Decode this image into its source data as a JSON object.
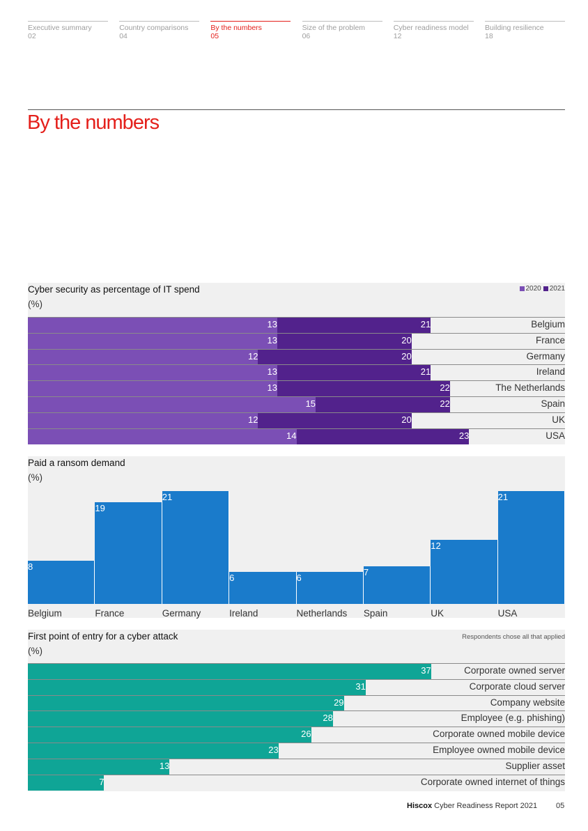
{
  "nav": [
    {
      "label": "Executive summary",
      "page": "02",
      "active": false
    },
    {
      "label": "Country comparisons",
      "page": "04",
      "active": false
    },
    {
      "label": "By the numbers",
      "page": "05",
      "active": true
    },
    {
      "label": "Size of the problem",
      "page": "06",
      "active": false
    },
    {
      "label": "Cyber readiness model",
      "page": "12",
      "active": false
    },
    {
      "label": "Building resilience",
      "page": "18",
      "active": false
    }
  ],
  "page_title": "By the numbers",
  "footer": {
    "brand": "Hiscox",
    "text": " Cyber Readiness Report 2021",
    "page": "05"
  },
  "colors": {
    "accent": "#e4201b",
    "c2020": "#7b4fb5",
    "c2021": "#52228c",
    "ransom": "#1a7bcb",
    "entry": "#0fa596",
    "panel": "#f0f0f0"
  },
  "chart_data": [
    {
      "type": "bar",
      "orientation": "horizontal",
      "title": "Cyber security as percentage of IT spend",
      "unit": "(%)",
      "legend": [
        "2020",
        "2021"
      ],
      "categories": [
        "Belgium",
        "France",
        "Germany",
        "Ireland",
        "The Netherlands",
        "Spain",
        "UK",
        "USA"
      ],
      "series": [
        {
          "name": "2020",
          "values": [
            13,
            13,
            12,
            13,
            13,
            15,
            12,
            14
          ]
        },
        {
          "name": "2021",
          "values": [
            21,
            20,
            20,
            21,
            22,
            22,
            20,
            23
          ]
        }
      ]
    },
    {
      "type": "bar",
      "orientation": "vertical",
      "title": "Paid a ransom demand",
      "unit": "(%)",
      "categories": [
        "Belgium",
        "France",
        "Germany",
        "Ireland",
        "Netherlands",
        "Spain",
        "UK",
        "USA"
      ],
      "values": [
        8,
        19,
        21,
        6,
        6,
        7,
        12,
        21
      ]
    },
    {
      "type": "bar",
      "orientation": "horizontal",
      "title": "First point of entry for a cyber attack",
      "unit": "(%)",
      "note": "Respondents chose all that applied",
      "categories": [
        "Corporate owned server",
        "Corporate cloud server",
        "Company website",
        "Employee (e.g. phishing)",
        "Corporate owned mobile device",
        "Employee owned mobile device",
        "Supplier asset",
        "Corporate owned internet of things"
      ],
      "values": [
        37,
        31,
        29,
        28,
        26,
        23,
        13,
        7
      ]
    }
  ]
}
